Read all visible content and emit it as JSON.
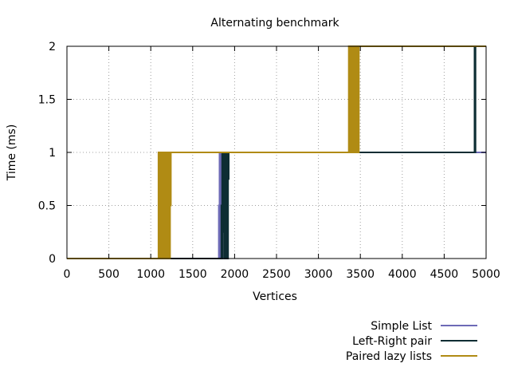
{
  "chart_data": {
    "type": "line",
    "title": "Alternating benchmark",
    "xlabel": "Vertices",
    "ylabel": "Time (ms)",
    "xlim": [
      0,
      5000
    ],
    "ylim": [
      0,
      2
    ],
    "xticks": [
      0,
      500,
      1000,
      1500,
      2000,
      2500,
      3000,
      3500,
      4000,
      4500,
      5000
    ],
    "yticks": [
      0,
      0.5,
      1,
      1.5,
      2
    ],
    "ytick_labels": [
      "0",
      "0.5",
      "1",
      "1.5",
      "2"
    ],
    "grid": true,
    "legend_position": "bottom-right",
    "series": [
      {
        "name": "Simple List",
        "color": "#6d6ab6",
        "x": [
          0,
          1810,
          1812,
          1815,
          1820,
          1822,
          1825,
          1828,
          1830,
          1832,
          1835,
          1838,
          1840,
          1845,
          1850,
          1855,
          1860,
          1865,
          1870,
          1875,
          1880,
          1900,
          5000
        ],
        "y": [
          0,
          0,
          0.5,
          0,
          1,
          0,
          0.5,
          0,
          1,
          0,
          0.5,
          1,
          0,
          1,
          0,
          0.75,
          1,
          0.5,
          1,
          1,
          1,
          1,
          1
        ]
      },
      {
        "name": "Left-Right pair",
        "color": "#0d2d33",
        "x": [
          0,
          1840,
          1842,
          1850,
          1852,
          1860,
          1862,
          1870,
          1872,
          1880,
          1882,
          1890,
          1892,
          1900,
          1902,
          1910,
          1912,
          1920,
          1922,
          1930,
          1935,
          4860,
          4862,
          4866,
          4868,
          4872,
          4874,
          5000
        ],
        "y": [
          0,
          0,
          0.5,
          0,
          1,
          0,
          0.5,
          1,
          0.25,
          1,
          0,
          0.75,
          1,
          0,
          1,
          0.5,
          1,
          0,
          0.75,
          1,
          1,
          1,
          2,
          1.5,
          2,
          1,
          2,
          2
        ]
      },
      {
        "name": "Paired lazy lists",
        "color": "#b08b14",
        "x": [
          0,
          1090,
          1092,
          1100,
          1102,
          1110,
          1112,
          1120,
          1122,
          1130,
          1132,
          1140,
          1142,
          1150,
          1152,
          1160,
          1162,
          1170,
          1172,
          1180,
          1182,
          1190,
          1192,
          1200,
          1202,
          1210,
          1212,
          1220,
          1222,
          1230,
          1232,
          1240,
          3360,
          3362,
          3370,
          3372,
          3380,
          3382,
          3390,
          3392,
          3400,
          3402,
          3410,
          3412,
          3420,
          3422,
          3430,
          3432,
          3440,
          3442,
          3450,
          3452,
          3460,
          3462,
          3470,
          3472,
          3480,
          3482,
          3490,
          5000
        ],
        "y": [
          0,
          0,
          1,
          0.5,
          0,
          1,
          0.25,
          0.75,
          0,
          1,
          0.5,
          0,
          1,
          0.25,
          0.75,
          0,
          1,
          0.5,
          0,
          1,
          0.5,
          0,
          1,
          0.25,
          1,
          0,
          0.5,
          1,
          0,
          1,
          0.5,
          1,
          1,
          2,
          1,
          1.5,
          2,
          1,
          2,
          1.5,
          1,
          2,
          1,
          1.5,
          2,
          1,
          2,
          1.5,
          1,
          2,
          1.5,
          2,
          1,
          2,
          1.5,
          2,
          1,
          2,
          2,
          2
        ]
      }
    ]
  }
}
